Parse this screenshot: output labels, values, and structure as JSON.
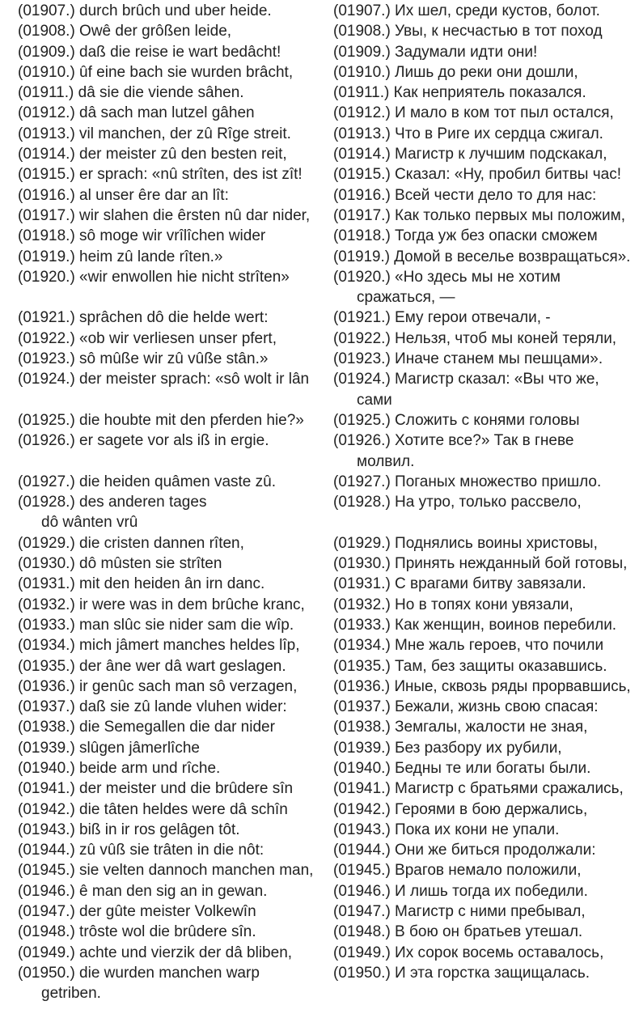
{
  "left_column": [
    {
      "text": "(01907.) durch brûch und uber heide."
    },
    {
      "text": "(01908.) Owê der grôßen leide,"
    },
    {
      "text": "(01909.) daß die reise ie wart bedâcht!"
    },
    {
      "text": "(01910.) ûf eine bach sie wurden brâcht,"
    },
    {
      "text": "(01911.) dâ sie die viende sâhen."
    },
    {
      "text": "(01912.) dâ sach man lutzel gâhen"
    },
    {
      "text": "(01913.) vil manchen, der zû Rîge streit."
    },
    {
      "text": "(01914.) der meister zû den besten reit,"
    },
    {
      "text": "(01915.) er sprach: «nû strîten, des ist zît!"
    },
    {
      "text": "(01916.) al unser êre dar an lît:"
    },
    {
      "text": "(01917.) wir slahen die êrsten nû dar nider,"
    },
    {
      "text": "(01918.) sô moge wir vrîlîchen wider"
    },
    {
      "text": "(01919.) heim zû lande rîten.»"
    },
    {
      "text": "(01920.) «wir enwollen hie nicht strîten»"
    },
    {
      "text": ""
    },
    {
      "text": "(01921.) sprâchen dô die helde wert:"
    },
    {
      "text": "(01922.) «ob wir verliesen unser pfert,"
    },
    {
      "text": "(01923.) sô mûße wir zû vûße stân.»"
    },
    {
      "text": "(01924.) der meister sprach: «sô wolt ir lân"
    },
    {
      "text": ""
    },
    {
      "text": "(01925.) die houbte mit den pferden hie?»"
    },
    {
      "text": "(01926.) er sagete vor als iß in ergie."
    },
    {
      "text": ""
    },
    {
      "text": "(01927.) die heiden quâmen vaste zû."
    },
    {
      "text": "(01928.) des anderen tages"
    },
    {
      "text": "dô wânten vrû",
      "cont": true
    },
    {
      "text": "(01929.) die cristen dannen rîten,"
    },
    {
      "text": "(01930.) dô mûsten sie strîten"
    },
    {
      "text": "(01931.) mit den heiden ân irn danc."
    },
    {
      "text": "(01932.) ir were was in dem brûche kranc,"
    },
    {
      "text": "(01933.) man slûc sie nider sam die wîp."
    },
    {
      "text": "(01934.) mich jâmert manches heldes lîp,"
    },
    {
      "text": "(01935.) der âne wer dâ wart geslagen."
    },
    {
      "text": "(01936.) ir genûc sach man sô verzagen,"
    },
    {
      "text": "(01937.) daß sie zû lande vluhen wider:"
    },
    {
      "text": "(01938.) die Semegallen die dar nider"
    },
    {
      "text": "(01939.) slûgen jâmerlîche"
    },
    {
      "text": "(01940.) beide arm und rîche."
    },
    {
      "text": "(01941.) der meister und die brûdere sîn"
    },
    {
      "text": "(01942.) die tâten heldes were dâ schîn"
    },
    {
      "text": "(01943.) biß in ir ros gelâgen tôt."
    },
    {
      "text": "(01944.) zû vûß sie trâten in die nôt:"
    },
    {
      "text": "(01945.) sie velten dannoch manchen man,"
    },
    {
      "text": "(01946.) ê man den sig an in gewan."
    },
    {
      "text": "(01947.) der gûte meister Volkewîn"
    },
    {
      "text": "(01948.) trôste wol die brûdere sîn."
    },
    {
      "text": "(01949.) achte und vierzik der dâ bliben,"
    },
    {
      "text": "(01950.) die wurden manchen warp"
    },
    {
      "text": "getriben.",
      "cont": true
    }
  ],
  "right_column": [
    {
      "text": "(01907.) Их шел, среди кустов, болот."
    },
    {
      "text": "(01908.) Увы, к несчастью в тот поход"
    },
    {
      "text": "(01909.) Задумали идти они!"
    },
    {
      "text": "(01910.) Лишь до реки они дошли,"
    },
    {
      "text": "(01911.) Как неприятель показался."
    },
    {
      "text": "(01912.) И мало в ком тот пыл остался,"
    },
    {
      "text": "(01913.) Что в Риге их сердца сжигал."
    },
    {
      "text": "(01914.) Магистр к лучшим подскакал,"
    },
    {
      "text": "(01915.) Сказал: «Ну, пробил битвы час!"
    },
    {
      "text": "(01916.) Всей чести дело то для нас:"
    },
    {
      "text": "(01917.) Как только первых мы положим,"
    },
    {
      "text": "(01918.) Тогда уж без опаски сможем"
    },
    {
      "text": "(01919.) Домой в веселье возвращаться»."
    },
    {
      "text": "(01920.) «Но здесь мы не хотим"
    },
    {
      "text": "сражаться, —",
      "cont": true
    },
    {
      "text": "(01921.) Ему герои отвечали, -"
    },
    {
      "text": "(01922.) Нельзя, чтоб мы коней теряли,"
    },
    {
      "text": "(01923.) Иначе станем мы пешцами»."
    },
    {
      "text": "(01924.) Магистр сказал: «Вы что же,"
    },
    {
      "text": "сами",
      "cont": true
    },
    {
      "text": "(01925.) Сложить с конями головы"
    },
    {
      "text": "(01926.) Хотите все?» Так в гневе"
    },
    {
      "text": "молвил.",
      "cont": true
    },
    {
      "text": "(01927.) Поганых множество пришло."
    },
    {
      "text": "(01928.) На утро, только рассвело,"
    },
    {
      "text": ""
    },
    {
      "text": "(01929.) Поднялись воины христовы,"
    },
    {
      "text": "(01930.) Принять нежданный бой готовы,"
    },
    {
      "text": "(01931.) С врагами битву завязали."
    },
    {
      "text": "(01932.) Но в топях кони увязали,"
    },
    {
      "text": "(01933.) Как женщин, воинов перебили."
    },
    {
      "text": "(01934.) Мне жаль героев, что почили"
    },
    {
      "text": "(01935.) Там, без защиты оказавшись."
    },
    {
      "text": "(01936.) Иные, сквозь ряды прорвавшись,"
    },
    {
      "text": "(01937.) Бежали, жизнь свою спасая:"
    },
    {
      "text": "(01938.) Земгалы, жалости не зная,"
    },
    {
      "text": "(01939.) Без разбору их рубили,"
    },
    {
      "text": "(01940.) Бедны те или богаты были."
    },
    {
      "text": "(01941.) Магистр с братьями сражались,"
    },
    {
      "text": "(01942.) Героями в бою держались,"
    },
    {
      "text": "(01943.) Пока их кони не упали."
    },
    {
      "text": "(01944.) Они же биться продолжали:"
    },
    {
      "text": "(01945.) Врагов немало положили,"
    },
    {
      "text": "(01946.) И лишь тогда их победили."
    },
    {
      "text": "(01947.) Магистр с ними пребывал,"
    },
    {
      "text": "(01948.) В бою он братьев утешал."
    },
    {
      "text": "(01949.) Их сорок восемь оставалось,"
    },
    {
      "text": "(01950.) И эта горстка защищалась."
    }
  ]
}
